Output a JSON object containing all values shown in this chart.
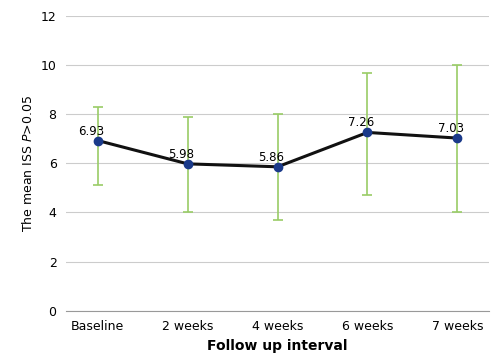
{
  "x_labels": [
    "Baseline",
    "2 weeks",
    "4 weeks",
    "6 weeks",
    "7 weeks"
  ],
  "y_values": [
    6.93,
    5.98,
    5.86,
    7.26,
    7.03
  ],
  "y_labels": [
    "6.93",
    "5.98",
    "5.86",
    "7.26",
    "7.03"
  ],
  "sd_upper": [
    1.37,
    1.92,
    2.14,
    2.44,
    2.97
  ],
  "sd_lower": [
    1.83,
    1.98,
    2.16,
    2.56,
    3.03
  ],
  "xlabel": "Follow up interval",
  "ylabel": "The mean ISS $P$>0.05",
  "ylim": [
    0,
    12
  ],
  "yticks": [
    0,
    2,
    4,
    6,
    8,
    10,
    12
  ],
  "line_color": "#111111",
  "marker_color": "#1a3a8a",
  "errorbar_color": "#99cc66",
  "background_color": "#ffffff",
  "grid_color": "#cccccc",
  "label_fontsize": 8.5,
  "axis_label_fontsize": 10,
  "marker_size": 6,
  "errorbar_linewidth": 1.2,
  "capsize": 3.5,
  "line_width": 2.2
}
